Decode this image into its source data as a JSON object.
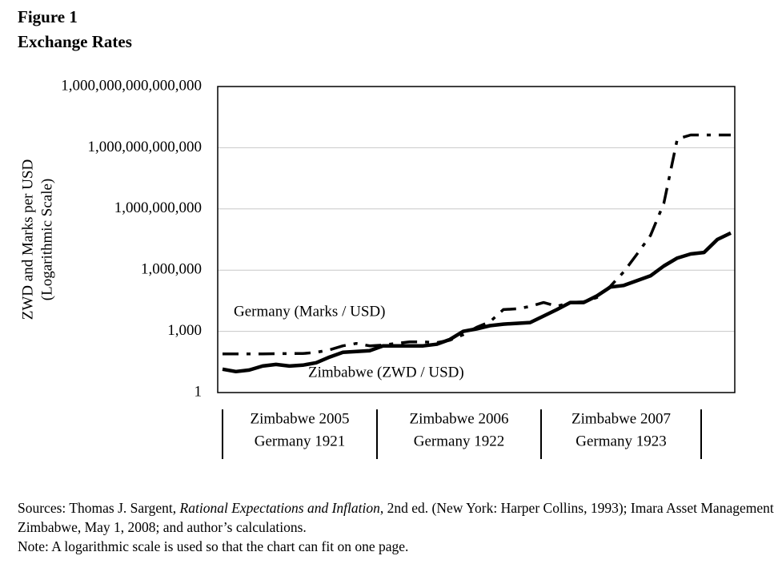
{
  "chart_data": {
    "type": "line",
    "title": "Figure 1",
    "subtitle": "Exchange Rates",
    "y_label": [
      "ZWD and Marks per USD",
      "(Logarithmic Scale)"
    ],
    "log_scale": true,
    "grid": true,
    "categories": [
      null,
      null,
      null,
      null,
      null,
      null,
      null,
      null,
      null,
      null,
      null,
      null,
      null,
      null,
      null,
      null,
      null,
      null,
      null,
      null,
      null,
      null,
      null,
      null,
      null,
      null,
      null,
      null,
      null,
      null,
      null,
      null,
      null,
      null,
      null,
      null,
      null,
      null,
      null
    ],
    "periods": [
      [
        "Zimbabwe 2005",
        "Germany 1921"
      ],
      [
        "Zimbabwe 2006",
        "Germany 1922"
      ],
      [
        "Zimbabwe 2007",
        "Germany 1923"
      ]
    ],
    "ylim": [
      1,
      1000000000000000
    ],
    "yticks": [
      1,
      {
        "value": 1000,
        "label": "1,000"
      },
      {
        "value": 1000000,
        "label": "1,000,000"
      },
      {
        "value": 1000000000,
        "label": "1,000,000,000"
      },
      {
        "value": 1000000000000,
        "label": "1,000,000,000,000"
      },
      {
        "value": 1000000000000000,
        "label": "1,000,000,000,000,000"
      }
    ],
    "series": [
      {
        "name": "Germany (Marks / USD)",
        "color": "#000000",
        "dash": "dash-dot",
        "values": [
          78,
          78,
          78,
          78,
          80,
          82,
          82,
          94,
          124,
          195,
          256,
          195,
          214,
          256,
          307,
          307,
          280,
          370,
          690,
          1580,
          2960,
          11700,
          12700,
          16700,
          26000,
          17000,
          26000,
          28000,
          46000,
          163000,
          830000,
          6200000,
          50000000,
          1900000000,
          2700000000000,
          4200000000000,
          4200000000000,
          4200000000000,
          4200000000000
        ]
      },
      {
        "name": "Zimbabwe (ZWD / USD)",
        "color": "#000000",
        "dash": "solid",
        "values": [
          14,
          10.7,
          12.7,
          20,
          24,
          20,
          22,
          29,
          55,
          94,
          103,
          113,
          195,
          195,
          195,
          195,
          234,
          400,
          1000,
          1320,
          1900,
          2250,
          2460,
          2700,
          5600,
          11700,
          26000,
          26000,
          55000,
          148000,
          178000,
          309000,
          525000,
          1600000,
          3900000,
          6200000,
          7400000,
          32000000,
          66000000
        ]
      }
    ],
    "sources": [
      "Sources: Thomas J. Sargent, ",
      "Rational Expectations and Inflation",
      ", 2nd ed. (New York: Harper Collins, 1993); Imara Asset Management Zimbabwe, May 1, 2008; and author’s calculations."
    ],
    "note": "Note: A logarithmic scale is used so that the chart can fit on one page."
  }
}
